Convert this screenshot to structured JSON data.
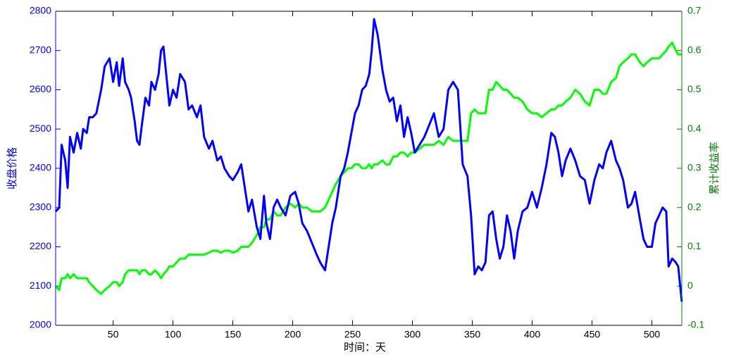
{
  "chart_data": {
    "type": "line",
    "xlabel": "时间：天",
    "ylabel": "收盘价格",
    "y2label": "累计收益率",
    "xlim": [
      2,
      525
    ],
    "xticks": [
      50,
      100,
      150,
      200,
      250,
      300,
      350,
      400,
      450,
      500
    ],
    "ylim": [
      2000,
      2800
    ],
    "yticks": [
      2000,
      2100,
      2200,
      2300,
      2400,
      2500,
      2600,
      2700,
      2800
    ],
    "y2lim": [
      -0.1,
      0.7
    ],
    "y2ticks": [
      -0.1,
      0,
      0.1,
      0.2,
      0.3,
      0.4,
      0.5,
      0.6,
      0.7
    ],
    "ycolor": "#0000ff",
    "y2color": "#008000",
    "x": [
      2,
      5,
      7,
      10,
      12,
      14,
      17,
      20,
      23,
      25,
      28,
      30,
      33,
      36,
      40,
      43,
      47,
      50,
      53,
      55,
      58,
      60,
      63,
      65,
      68,
      70,
      72,
      74,
      77,
      80,
      82,
      85,
      88,
      90,
      92,
      95,
      97,
      100,
      103,
      106,
      110,
      113,
      116,
      120,
      123,
      126,
      130,
      133,
      137,
      140,
      143,
      147,
      150,
      154,
      157,
      160,
      163,
      166,
      170,
      173,
      176,
      178,
      181,
      184,
      187,
      190,
      194,
      198,
      202,
      205,
      208,
      212,
      216,
      220,
      223,
      227,
      230,
      233,
      236,
      240,
      243,
      246,
      249,
      252,
      255,
      258,
      261,
      264,
      266,
      268,
      271,
      275,
      278,
      281,
      284,
      287,
      290,
      293,
      296,
      299,
      302,
      306,
      310,
      314,
      318,
      322,
      326,
      330,
      334,
      338,
      342,
      346,
      349,
      352,
      355,
      358,
      361,
      364,
      367,
      370,
      373,
      376,
      379,
      382,
      385,
      388,
      392,
      396,
      400,
      404,
      408,
      412,
      416,
      419,
      422,
      425,
      428,
      432,
      436,
      440,
      444,
      448,
      452,
      456,
      459,
      462,
      466,
      470,
      473,
      476,
      480,
      483,
      486,
      490,
      493,
      496,
      500,
      503,
      506,
      509,
      512,
      514,
      517,
      520,
      522,
      525
    ],
    "series": [
      {
        "color": "#0000ff",
        "values": [
          2290,
          2300,
          2460,
          2420,
          2350,
          2480,
          2440,
          2490,
          2450,
          2500,
          2490,
          2530,
          2530,
          2540,
          2600,
          2660,
          2680,
          2620,
          2670,
          2610,
          2680,
          2620,
          2600,
          2580,
          2520,
          2470,
          2460,
          2510,
          2580,
          2560,
          2620,
          2600,
          2640,
          2700,
          2710,
          2620,
          2560,
          2600,
          2580,
          2640,
          2620,
          2550,
          2560,
          2530,
          2560,
          2480,
          2450,
          2470,
          2420,
          2430,
          2400,
          2380,
          2370,
          2390,
          2410,
          2350,
          2290,
          2320,
          2250,
          2220,
          2330,
          2260,
          2220,
          2300,
          2320,
          2300,
          2280,
          2330,
          2340,
          2310,
          2260,
          2240,
          2210,
          2180,
          2160,
          2140,
          2200,
          2260,
          2300,
          2380,
          2400,
          2440,
          2490,
          2540,
          2560,
          2600,
          2610,
          2640,
          2700,
          2780,
          2740,
          2650,
          2600,
          2570,
          2580,
          2520,
          2560,
          2480,
          2530,
          2490,
          2440,
          2460,
          2480,
          2510,
          2540,
          2480,
          2500,
          2600,
          2620,
          2600,
          2410,
          2380,
          2280,
          2130,
          2150,
          2140,
          2160,
          2280,
          2290,
          2220,
          2170,
          2200,
          2280,
          2240,
          2170,
          2240,
          2290,
          2300,
          2340,
          2300,
          2350,
          2410,
          2490,
          2480,
          2440,
          2380,
          2420,
          2450,
          2420,
          2380,
          2370,
          2310,
          2370,
          2410,
          2400,
          2440,
          2470,
          2420,
          2400,
          2370,
          2300,
          2310,
          2340,
          2270,
          2220,
          2200,
          2200,
          2260,
          2280,
          2300,
          2290,
          2150,
          2170,
          2160,
          2150,
          2060
        ]
      },
      {
        "color": "#00ff00",
        "axis": "y2",
        "values": [
          0,
          -0.01,
          0.02,
          0.02,
          0.03,
          0.02,
          0.03,
          0.02,
          0.02,
          0.02,
          0.02,
          0.01,
          0,
          -0.01,
          -0.02,
          -0.01,
          0,
          0.01,
          0.01,
          0,
          0.01,
          0.03,
          0.04,
          0.04,
          0.04,
          0.04,
          0.03,
          0.04,
          0.04,
          0.03,
          0.03,
          0.04,
          0.03,
          0.02,
          0.03,
          0.04,
          0.05,
          0.05,
          0.06,
          0.07,
          0.07,
          0.08,
          0.08,
          0.08,
          0.08,
          0.08,
          0.085,
          0.09,
          0.09,
          0.085,
          0.09,
          0.09,
          0.085,
          0.09,
          0.1,
          0.1,
          0.1,
          0.11,
          0.13,
          0.15,
          0.15,
          0.17,
          0.17,
          0.19,
          0.18,
          0.18,
          0.2,
          0.21,
          0.2,
          0.21,
          0.2,
          0.2,
          0.19,
          0.19,
          0.19,
          0.2,
          0.22,
          0.24,
          0.26,
          0.28,
          0.29,
          0.3,
          0.3,
          0.31,
          0.31,
          0.3,
          0.3,
          0.31,
          0.3,
          0.31,
          0.31,
          0.32,
          0.31,
          0.31,
          0.33,
          0.33,
          0.34,
          0.34,
          0.33,
          0.34,
          0.34,
          0.35,
          0.36,
          0.36,
          0.36,
          0.37,
          0.36,
          0.38,
          0.37,
          0.37,
          0.37,
          0.37,
          0.44,
          0.45,
          0.44,
          0.44,
          0.44,
          0.5,
          0.5,
          0.52,
          0.51,
          0.5,
          0.5,
          0.49,
          0.48,
          0.48,
          0.47,
          0.45,
          0.44,
          0.44,
          0.43,
          0.44,
          0.45,
          0.45,
          0.46,
          0.46,
          0.47,
          0.48,
          0.5,
          0.49,
          0.47,
          0.46,
          0.5,
          0.5,
          0.49,
          0.49,
          0.52,
          0.53,
          0.56,
          0.57,
          0.58,
          0.59,
          0.59,
          0.57,
          0.56,
          0.57,
          0.58,
          0.58,
          0.58,
          0.59,
          0.6,
          0.61,
          0.62,
          0.6,
          0.59,
          0.59
        ]
      }
    ]
  }
}
